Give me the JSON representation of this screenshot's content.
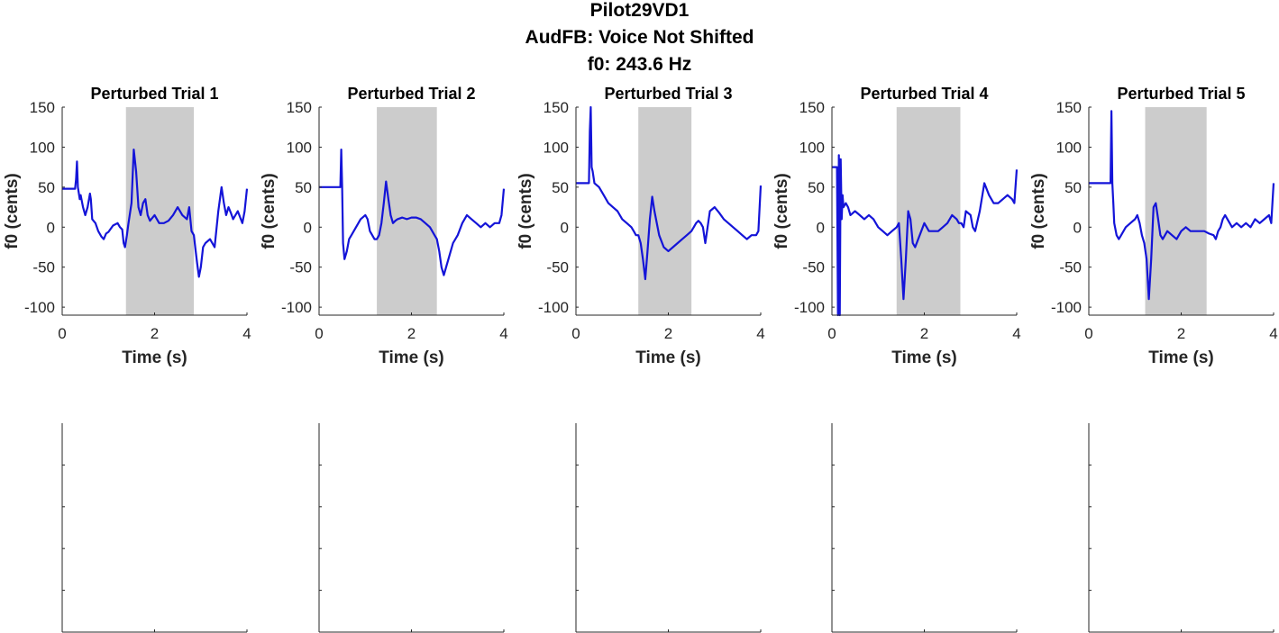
{
  "figure": {
    "title_lines": [
      "Pilot29VD1",
      "AudFB: Voice Not Shifted",
      "f0: 243.6 Hz"
    ]
  },
  "colors": {
    "line": "#1414d8",
    "shade": "#cccccc",
    "axis": "#262626"
  },
  "chart_data": [
    {
      "type": "line",
      "title": "Perturbed Trial 1",
      "xlabel": "Time (s)",
      "ylabel": "f0 (cents)",
      "xlim": [
        0,
        4
      ],
      "ylim": [
        -110,
        150
      ],
      "xticks": [
        "0",
        "2",
        "4"
      ],
      "yticks": [
        "150",
        "100",
        "50",
        "0",
        "-50",
        "-100"
      ],
      "shaded_region": [
        1.38,
        2.85
      ],
      "x": [
        0.0,
        0.28,
        0.3,
        0.32,
        0.34,
        0.38,
        0.4,
        0.45,
        0.5,
        0.55,
        0.6,
        0.62,
        0.65,
        0.72,
        0.78,
        0.85,
        0.9,
        0.95,
        1.0,
        1.1,
        1.2,
        1.25,
        1.3,
        1.33,
        1.36,
        1.4,
        1.43,
        1.5,
        1.55,
        1.6,
        1.65,
        1.7,
        1.75,
        1.8,
        1.85,
        1.9,
        2.0,
        2.1,
        2.2,
        2.3,
        2.4,
        2.5,
        2.6,
        2.7,
        2.75,
        2.8,
        2.85,
        2.88,
        2.92,
        2.96,
        3.0,
        3.05,
        3.1,
        3.2,
        3.3,
        3.38,
        3.45,
        3.5,
        3.55,
        3.6,
        3.65,
        3.7,
        3.8,
        3.9,
        3.95,
        4.0
      ],
      "y": [
        48,
        48,
        60,
        82,
        50,
        35,
        40,
        25,
        15,
        25,
        42,
        35,
        10,
        5,
        -5,
        -12,
        -15,
        -8,
        -6,
        2,
        5,
        0,
        -3,
        -20,
        -25,
        -10,
        3,
        30,
        97,
        70,
        25,
        15,
        30,
        35,
        15,
        8,
        15,
        5,
        5,
        8,
        15,
        25,
        15,
        10,
        25,
        -5,
        -10,
        -25,
        -45,
        -62,
        -50,
        -25,
        -20,
        -15,
        -25,
        20,
        50,
        30,
        15,
        25,
        18,
        10,
        20,
        5,
        20,
        48
      ]
    },
    {
      "type": "line",
      "title": "Perturbed Trial 2",
      "xlabel": "Time (s)",
      "ylabel": "f0 (cents)",
      "xlim": [
        0,
        4
      ],
      "ylim": [
        -110,
        150
      ],
      "xticks": [
        "0",
        "2",
        "4"
      ],
      "yticks": [
        "150",
        "100",
        "50",
        "0",
        "-50",
        "-100"
      ],
      "shaded_region": [
        1.25,
        2.55
      ],
      "x": [
        0.0,
        0.46,
        0.48,
        0.5,
        0.52,
        0.55,
        0.6,
        0.65,
        0.7,
        0.8,
        0.9,
        1.0,
        1.05,
        1.1,
        1.2,
        1.25,
        1.3,
        1.35,
        1.4,
        1.45,
        1.5,
        1.55,
        1.6,
        1.65,
        1.7,
        1.8,
        1.9,
        2.0,
        2.1,
        2.2,
        2.3,
        2.4,
        2.5,
        2.55,
        2.6,
        2.65,
        2.7,
        2.8,
        2.9,
        3.0,
        3.1,
        3.2,
        3.3,
        3.4,
        3.5,
        3.6,
        3.7,
        3.8,
        3.9,
        3.95,
        4.0
      ],
      "y": [
        50,
        50,
        97,
        50,
        -20,
        -40,
        -30,
        -15,
        -10,
        0,
        10,
        15,
        10,
        -5,
        -15,
        -15,
        -10,
        5,
        30,
        57,
        35,
        15,
        5,
        8,
        10,
        12,
        10,
        12,
        12,
        10,
        5,
        0,
        -10,
        -15,
        -30,
        -50,
        -60,
        -40,
        -20,
        -10,
        5,
        15,
        10,
        5,
        0,
        5,
        0,
        5,
        5,
        15,
        48
      ]
    },
    {
      "type": "line",
      "title": "Perturbed Trial 3",
      "xlabel": "Time (s)",
      "ylabel": "f0 (cents)",
      "xlim": [
        0,
        4
      ],
      "ylim": [
        -110,
        150
      ],
      "xticks": [
        "0",
        "2",
        "4"
      ],
      "yticks": [
        "150",
        "100",
        "50",
        "0",
        "-50",
        "-100"
      ],
      "shaded_region": [
        1.35,
        2.5
      ],
      "x": [
        0.0,
        0.28,
        0.3,
        0.32,
        0.34,
        0.36,
        0.4,
        0.5,
        0.6,
        0.7,
        0.8,
        0.9,
        1.0,
        1.1,
        1.2,
        1.25,
        1.3,
        1.35,
        1.4,
        1.45,
        1.5,
        1.55,
        1.6,
        1.65,
        1.7,
        1.8,
        1.9,
        2.0,
        2.1,
        2.2,
        2.3,
        2.4,
        2.5,
        2.55,
        2.6,
        2.65,
        2.7,
        2.75,
        2.8,
        2.9,
        3.0,
        3.1,
        3.2,
        3.3,
        3.4,
        3.5,
        3.6,
        3.7,
        3.8,
        3.9,
        3.95,
        4.0
      ],
      "y": [
        55,
        55,
        120,
        150,
        75,
        70,
        55,
        50,
        40,
        30,
        25,
        20,
        10,
        5,
        0,
        -5,
        -10,
        -10,
        -20,
        -40,
        -65,
        -30,
        10,
        38,
        20,
        -10,
        -25,
        -30,
        -25,
        -20,
        -15,
        -10,
        -5,
        0,
        5,
        8,
        5,
        0,
        -20,
        20,
        25,
        18,
        10,
        5,
        0,
        -5,
        -10,
        -15,
        -10,
        -10,
        -5,
        52
      ]
    },
    {
      "type": "line",
      "title": "Perturbed Trial 4",
      "xlabel": "Time (s)",
      "ylabel": "f0 (cents)",
      "xlim": [
        0,
        4
      ],
      "ylim": [
        -110,
        150
      ],
      "xticks": [
        "0",
        "2",
        "4"
      ],
      "yticks": [
        "150",
        "100",
        "50",
        "0",
        "-50",
        "-100"
      ],
      "shaded_region": [
        1.4,
        2.78
      ],
      "x": [
        0.0,
        0.1,
        0.11,
        0.13,
        0.15,
        0.17,
        0.19,
        0.21,
        0.23,
        0.25,
        0.3,
        0.35,
        0.4,
        0.5,
        0.6,
        0.7,
        0.8,
        0.9,
        1.0,
        1.1,
        1.2,
        1.3,
        1.4,
        1.45,
        1.5,
        1.55,
        1.6,
        1.65,
        1.7,
        1.75,
        1.8,
        1.9,
        2.0,
        2.05,
        2.1,
        2.2,
        2.3,
        2.4,
        2.5,
        2.6,
        2.7,
        2.75,
        2.8,
        2.85,
        2.9,
        3.0,
        3.05,
        3.1,
        3.2,
        3.3,
        3.4,
        3.5,
        3.6,
        3.7,
        3.8,
        3.9,
        3.95,
        4.0
      ],
      "y": [
        75,
        75,
        75,
        -110,
        90,
        -110,
        85,
        10,
        40,
        25,
        30,
        25,
        15,
        20,
        15,
        10,
        15,
        10,
        0,
        -5,
        -10,
        -5,
        0,
        5,
        -40,
        -90,
        -40,
        20,
        10,
        -20,
        -25,
        -10,
        5,
        0,
        -5,
        -5,
        -5,
        0,
        5,
        15,
        10,
        5,
        5,
        0,
        20,
        15,
        0,
        -5,
        20,
        55,
        40,
        30,
        30,
        35,
        40,
        35,
        30,
        72
      ]
    },
    {
      "type": "line",
      "title": "Perturbed Trial 5",
      "xlabel": "Time (s)",
      "ylabel": "f0 (cents)",
      "xlim": [
        0,
        4
      ],
      "ylim": [
        -110,
        150
      ],
      "xticks": [
        "0",
        "2",
        "4"
      ],
      "yticks": [
        "150",
        "100",
        "50",
        "0",
        "-50",
        "-100"
      ],
      "shaded_region": [
        1.22,
        2.55
      ],
      "x": [
        0.0,
        0.45,
        0.47,
        0.49,
        0.51,
        0.53,
        0.55,
        0.6,
        0.65,
        0.7,
        0.8,
        0.9,
        1.0,
        1.05,
        1.1,
        1.15,
        1.2,
        1.25,
        1.3,
        1.35,
        1.4,
        1.45,
        1.5,
        1.55,
        1.6,
        1.7,
        1.8,
        1.9,
        2.0,
        2.1,
        2.2,
        2.3,
        2.4,
        2.5,
        2.6,
        2.7,
        2.75,
        2.8,
        2.85,
        2.9,
        2.95,
        3.0,
        3.1,
        3.2,
        3.3,
        3.4,
        3.5,
        3.6,
        3.7,
        3.8,
        3.9,
        3.95,
        4.0
      ],
      "y": [
        55,
        55,
        55,
        145,
        55,
        30,
        5,
        -10,
        -15,
        -10,
        0,
        5,
        10,
        15,
        5,
        -10,
        -20,
        -40,
        -90,
        -40,
        25,
        30,
        10,
        -10,
        -15,
        -5,
        -10,
        -15,
        -5,
        0,
        -5,
        -5,
        -5,
        -5,
        -8,
        -10,
        -15,
        -5,
        0,
        10,
        15,
        10,
        0,
        5,
        0,
        5,
        0,
        10,
        5,
        10,
        15,
        5,
        55
      ]
    },
    {
      "type": "line",
      "title": "",
      "xlim": [
        0,
        4
      ],
      "ylim": [
        -110,
        150
      ],
      "x": [],
      "y": []
    },
    {
      "type": "line",
      "title": "",
      "xlim": [
        0,
        4
      ],
      "ylim": [
        -110,
        150
      ],
      "x": [],
      "y": []
    },
    {
      "type": "line",
      "title": "",
      "xlim": [
        0,
        4
      ],
      "ylim": [
        -110,
        150
      ],
      "x": [],
      "y": []
    },
    {
      "type": "line",
      "title": "",
      "xlim": [
        0,
        4
      ],
      "ylim": [
        -110,
        150
      ],
      "x": [],
      "y": []
    },
    {
      "type": "line",
      "title": "",
      "xlim": [
        0,
        4
      ],
      "ylim": [
        -110,
        150
      ],
      "x": [],
      "y": []
    }
  ]
}
